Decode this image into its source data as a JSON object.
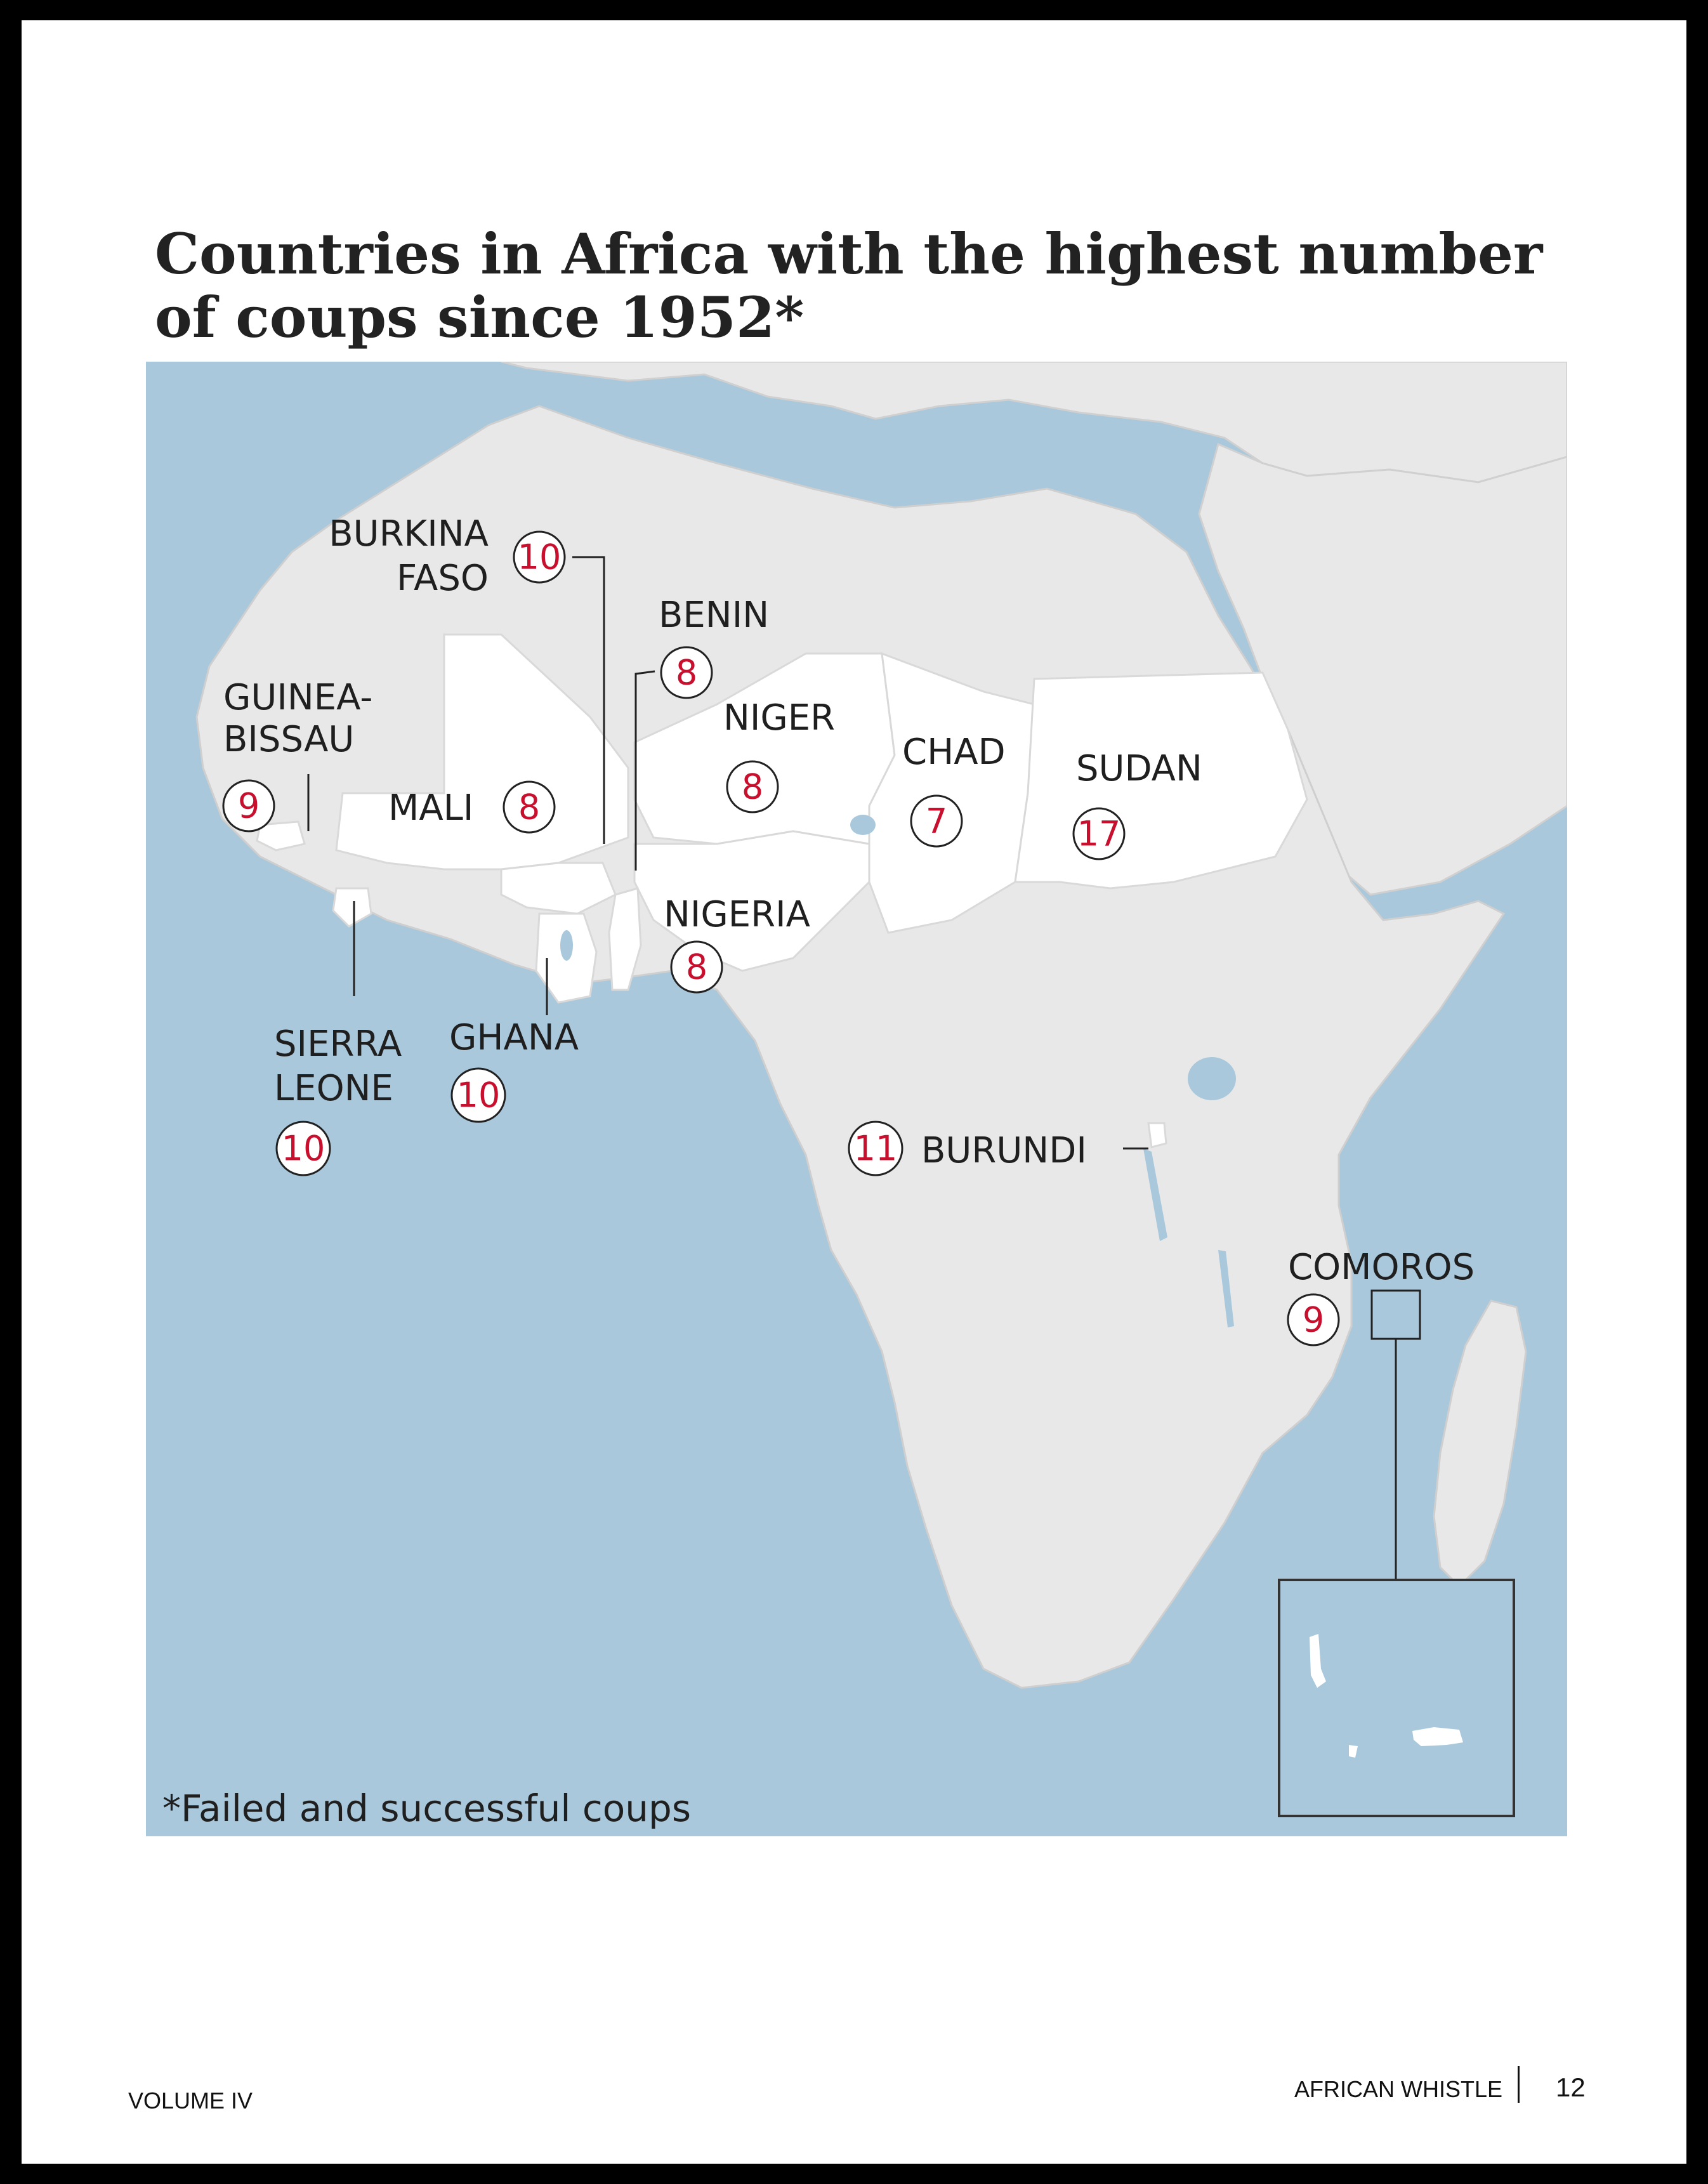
{
  "title": "Countries in Africa with the highest number of coups since 1952*",
  "footnote": "*Failed and successful coups",
  "colors": {
    "sea": "#a9c8dc",
    "land": "#e8e8e8",
    "highlighted": "#ffffff",
    "number": "#c8102e"
  },
  "countries": [
    {
      "id": "burkina-faso",
      "label_lines": [
        "BURKINA",
        "FASO"
      ],
      "coups": "10"
    },
    {
      "id": "benin",
      "label_lines": [
        "BENIN"
      ],
      "coups": "8"
    },
    {
      "id": "guinea-bissau",
      "label_lines": [
        "GUINEA-",
        "BISSAU"
      ],
      "coups": "9"
    },
    {
      "id": "mali",
      "label_lines": [
        "MALI"
      ],
      "coups": "8"
    },
    {
      "id": "niger",
      "label_lines": [
        "NIGER"
      ],
      "coups": "8"
    },
    {
      "id": "chad",
      "label_lines": [
        "CHAD"
      ],
      "coups": "7"
    },
    {
      "id": "sudan",
      "label_lines": [
        "SUDAN"
      ],
      "coups": "17"
    },
    {
      "id": "nigeria",
      "label_lines": [
        "NIGERIA"
      ],
      "coups": "8"
    },
    {
      "id": "sierra-leone",
      "label_lines": [
        "SIERRA",
        "LEONE"
      ],
      "coups": "10"
    },
    {
      "id": "ghana",
      "label_lines": [
        "GHANA"
      ],
      "coups": "10"
    },
    {
      "id": "burundi",
      "label_lines": [
        "BURUNDI"
      ],
      "coups": "11"
    },
    {
      "id": "comoros",
      "label_lines": [
        "COMOROS"
      ],
      "coups": "9"
    }
  ],
  "footer": {
    "volume": "VOLUME IV",
    "publication": "AFRICAN WHISTLE",
    "page_number": "12"
  }
}
